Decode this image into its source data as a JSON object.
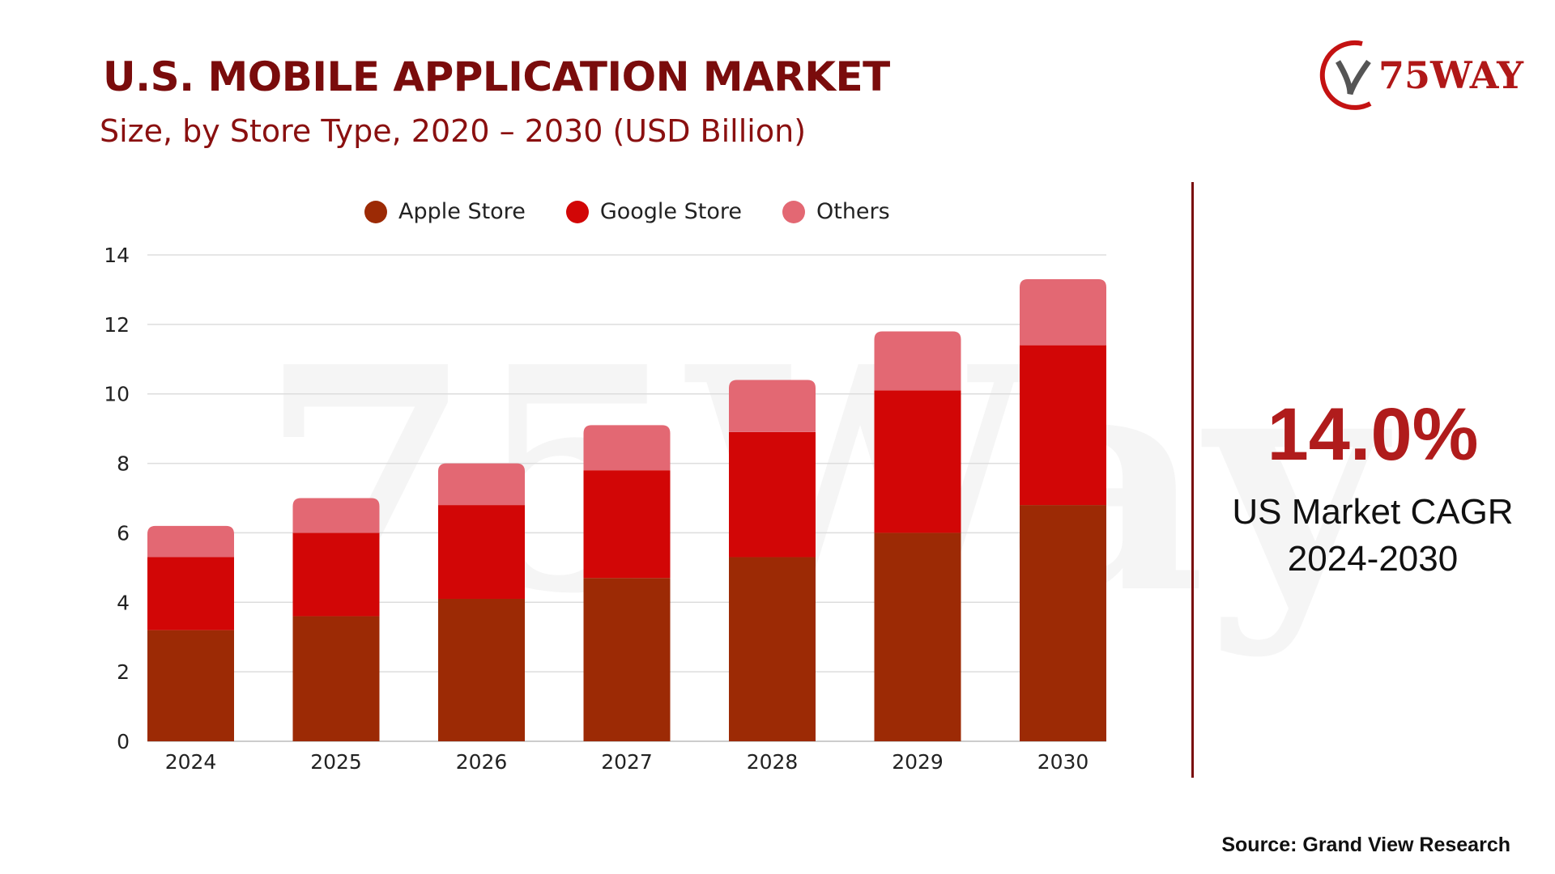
{
  "header": {
    "title": "U.S. MOBILE APPLICATION MARKET",
    "subtitle": "Size, by Store Type, 2020 – 2030 (USD Billion)"
  },
  "logo": {
    "text": "75WAY"
  },
  "watermark": "75Way",
  "cagr": {
    "value": "14.0%",
    "label_line1": "US Market CAGR",
    "label_line2": "2024-2030"
  },
  "source": "Source: Grand View Research",
  "colors": {
    "apple": "#9c2a05",
    "google": "#d20606",
    "others": "#e36873",
    "title": "#7a0c0c"
  },
  "chart_data": {
    "type": "bar",
    "stacked": true,
    "categories": [
      "2024",
      "2025",
      "2026",
      "2027",
      "2028",
      "2029",
      "2030"
    ],
    "series": [
      {
        "name": "Apple Store",
        "values": [
          3.2,
          3.6,
          4.1,
          4.7,
          5.3,
          6.0,
          6.8
        ]
      },
      {
        "name": "Google Store",
        "values": [
          2.1,
          2.4,
          2.7,
          3.1,
          3.6,
          4.1,
          4.6
        ]
      },
      {
        "name": "Others",
        "values": [
          0.9,
          1.0,
          1.2,
          1.3,
          1.5,
          1.7,
          1.9
        ]
      }
    ],
    "ylim": [
      0,
      14
    ],
    "yticks": [
      "0",
      "2",
      "4",
      "6",
      "8",
      "10",
      "12",
      "14"
    ],
    "grid": true,
    "legend": "top"
  }
}
